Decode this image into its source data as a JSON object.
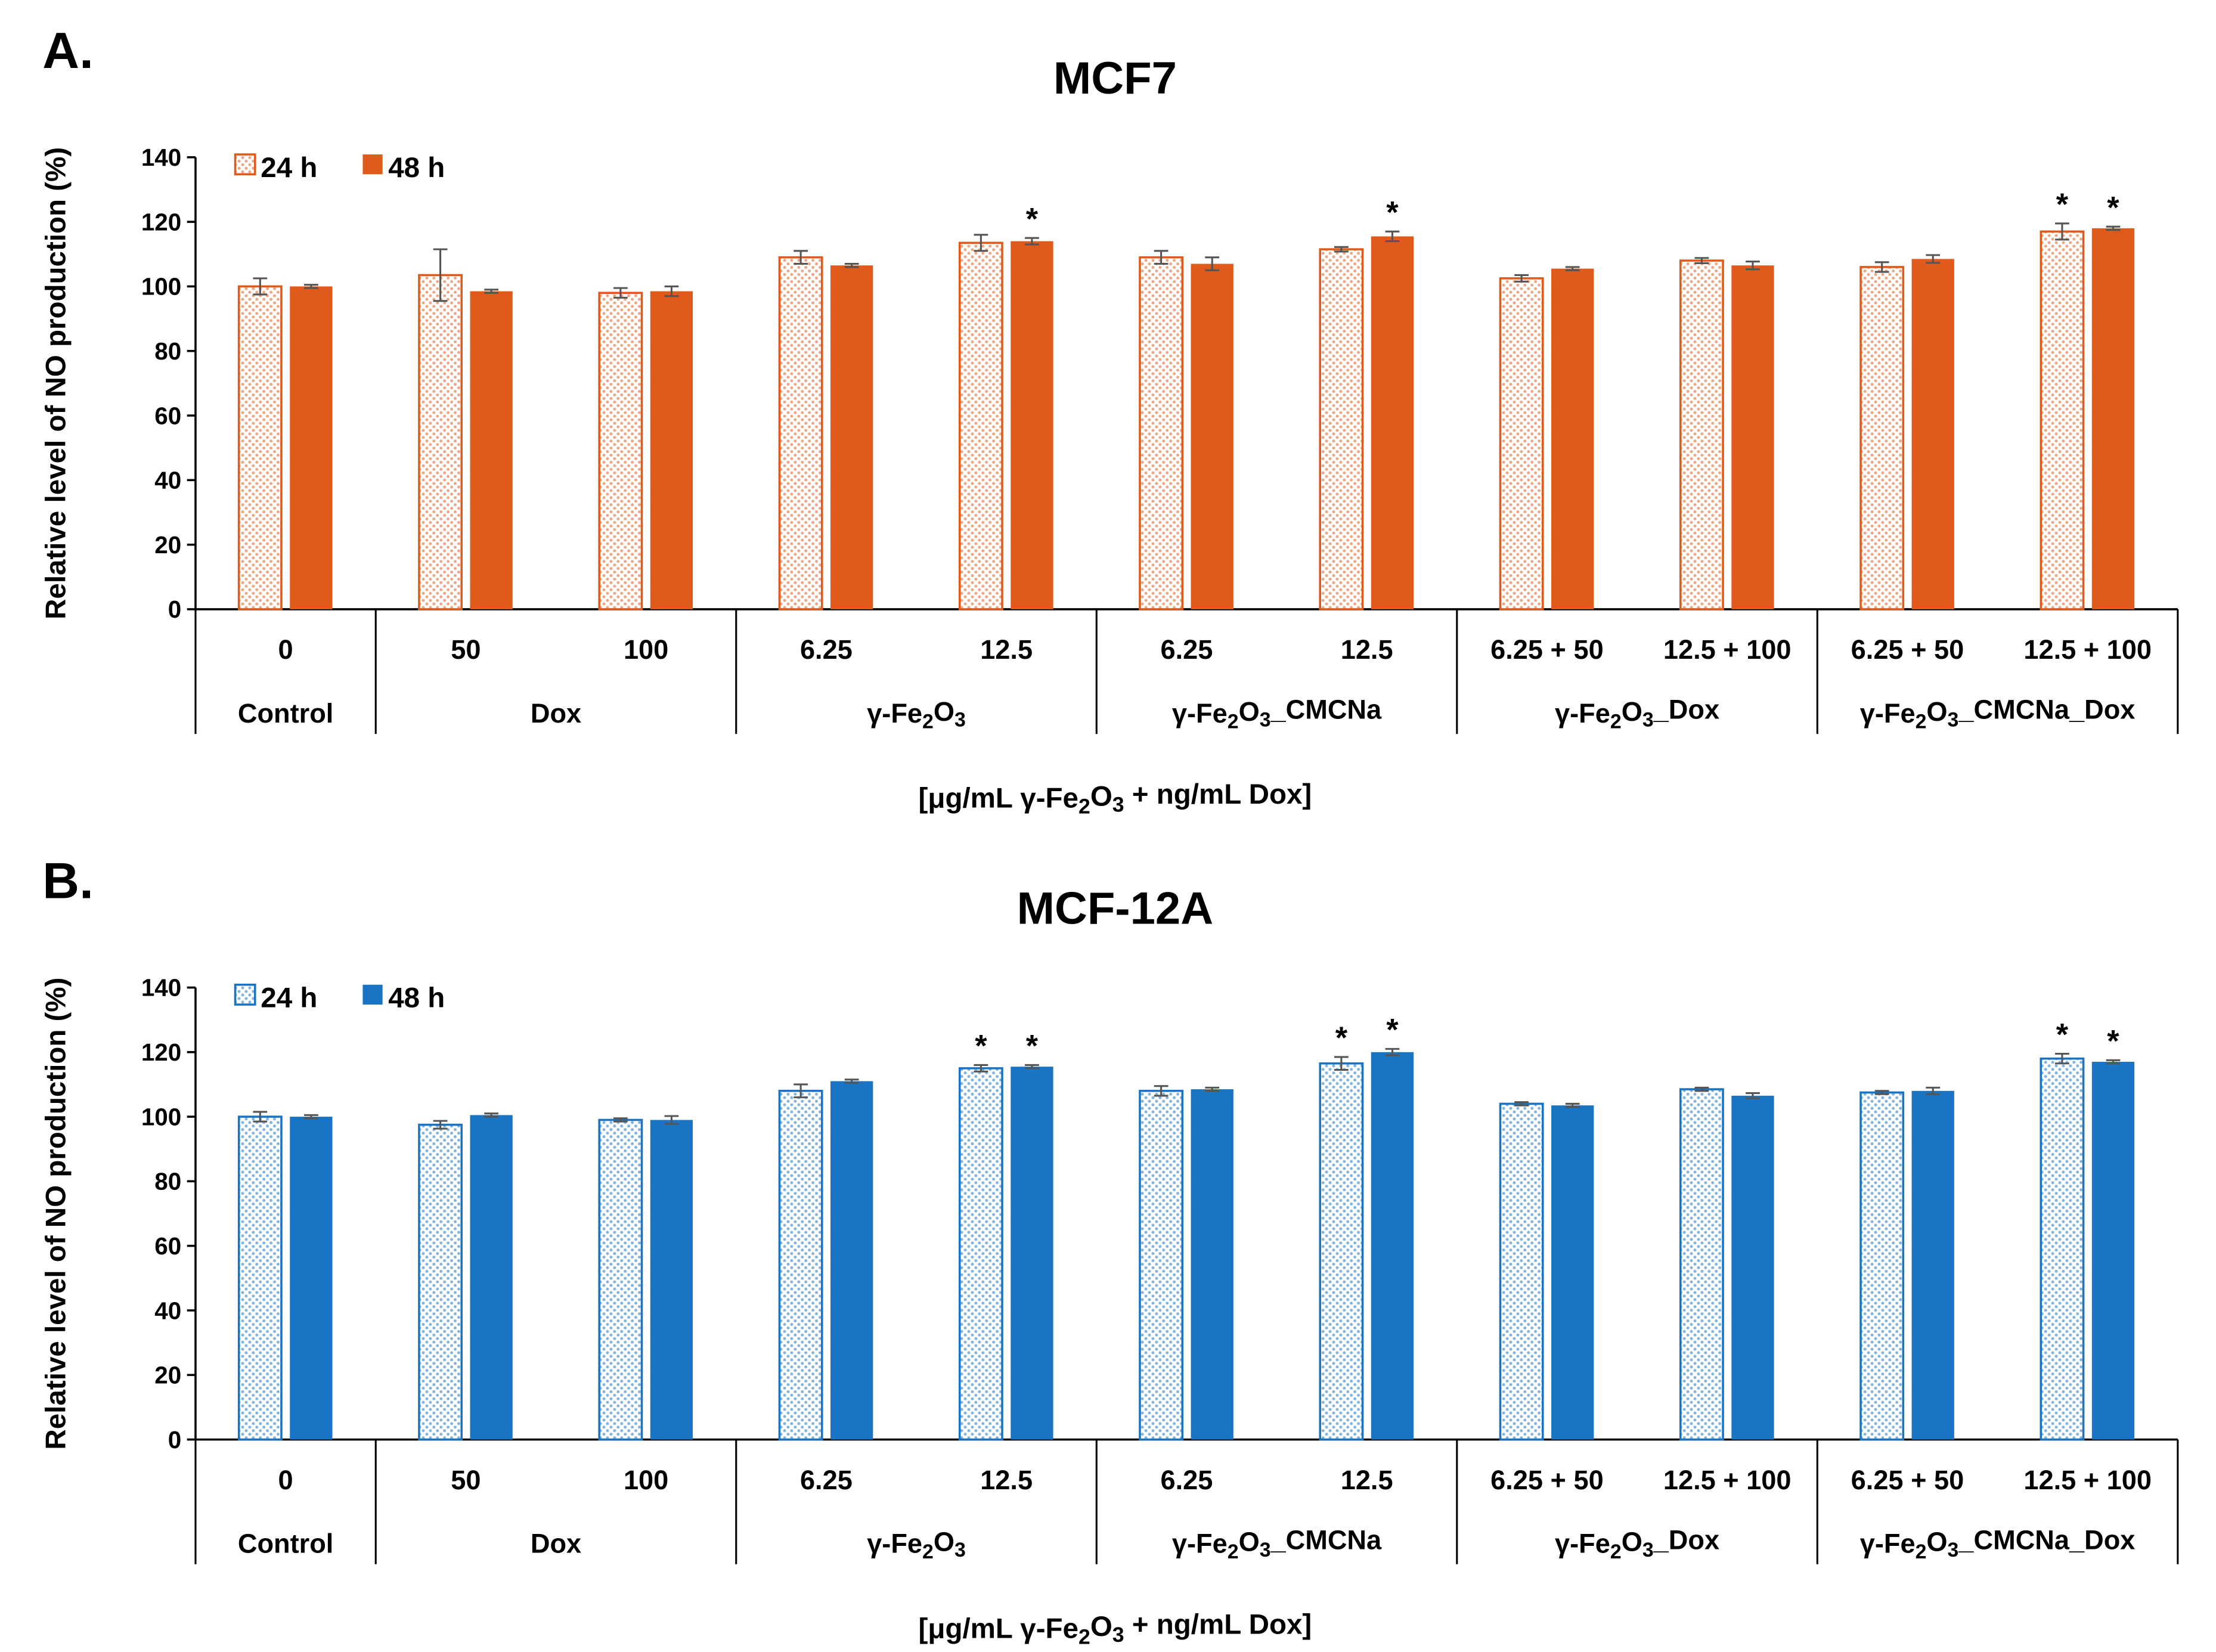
{
  "x_axis_label": "[μg/mL γ-Fe₂O₃ + ng/mL Dox]",
  "chart_data": [
    {
      "panel_label": "A.",
      "title": "MCF7",
      "type": "bar",
      "ylabel": "Relative level of NO production (%)",
      "ylim": [
        0,
        140
      ],
      "yticks": [
        0,
        20,
        40,
        60,
        80,
        100,
        120,
        140
      ],
      "categories": [
        "0",
        "50",
        "100",
        "6.25",
        "12.5",
        "6.25",
        "12.5",
        "6.25 + 50",
        "12.5 + 100",
        "6.25 + 50",
        "12.5 + 100"
      ],
      "groups": [
        {
          "label": "Control",
          "count": 1
        },
        {
          "label": "Dox",
          "count": 2
        },
        {
          "label": "γ-Fe₂O₃",
          "count": 2
        },
        {
          "label": "γ-Fe₂O₃_CMCNa",
          "count": 2
        },
        {
          "label": "γ-Fe₂O₃_Dox",
          "count": 2
        },
        {
          "label": "γ-Fe₂O₃_CMCNa_Dox",
          "count": 2
        }
      ],
      "series": [
        {
          "name": "24 h",
          "style": "dotted",
          "color": "#e05a1b",
          "values": [
            100,
            103.5,
            98,
            109,
            113.5,
            109,
            111.5,
            102.5,
            108,
            106,
            117
          ],
          "errors": [
            2.5,
            8,
            1.5,
            2,
            2.5,
            2,
            0.7,
            1,
            0.8,
            1.5,
            2.5
          ],
          "significant": [
            false,
            false,
            false,
            false,
            false,
            false,
            false,
            false,
            false,
            false,
            true
          ]
        },
        {
          "name": "48 h",
          "style": "solid",
          "color": "#e05a1b",
          "values": [
            100,
            98.5,
            98.5,
            106.5,
            114,
            107,
            115.5,
            105.5,
            106.5,
            108.5,
            118
          ],
          "errors": [
            0.5,
            0.5,
            1.5,
            0.5,
            1,
            2,
            1.5,
            0.5,
            1.2,
            1.2,
            0.5
          ],
          "significant": [
            false,
            false,
            false,
            false,
            true,
            false,
            true,
            false,
            false,
            false,
            true
          ]
        }
      ],
      "legend_position": "top-left",
      "grid": false
    },
    {
      "panel_label": "B.",
      "title": "MCF-12A",
      "type": "bar",
      "ylabel": "Relative level of NO production (%)",
      "ylim": [
        0,
        140
      ],
      "yticks": [
        0,
        20,
        40,
        60,
        80,
        100,
        120,
        140
      ],
      "categories": [
        "0",
        "50",
        "100",
        "6.25",
        "12.5",
        "6.25",
        "12.5",
        "6.25 + 50",
        "12.5 + 100",
        "6.25 + 50",
        "12.5 + 100"
      ],
      "groups": [
        {
          "label": "Control",
          "count": 1
        },
        {
          "label": "Dox",
          "count": 2
        },
        {
          "label": "γ-Fe₂O₃",
          "count": 2
        },
        {
          "label": "γ-Fe₂O₃_CMCNa",
          "count": 2
        },
        {
          "label": "γ-Fe₂O₃_Dox",
          "count": 2
        },
        {
          "label": "γ-Fe₂O₃_CMCNa_Dox",
          "count": 2
        }
      ],
      "series": [
        {
          "name": "24 h",
          "style": "dotted",
          "color": "#1a74c4",
          "values": [
            100,
            97.5,
            99,
            108,
            115,
            108,
            116.5,
            104,
            108.5,
            107.5,
            118
          ],
          "errors": [
            1.5,
            1.2,
            0.5,
            2,
            1,
            1.5,
            2,
            0.5,
            0.5,
            0.5,
            1.5
          ],
          "significant": [
            false,
            false,
            false,
            false,
            true,
            false,
            true,
            false,
            false,
            false,
            true
          ]
        },
        {
          "name": "48 h",
          "style": "solid",
          "color": "#1a74c4",
          "values": [
            100,
            100.5,
            99,
            111,
            115.5,
            108.5,
            120,
            103.5,
            106.5,
            108,
            117
          ],
          "errors": [
            0.5,
            0.5,
            1.2,
            0.5,
            0.5,
            0.5,
            1,
            0.5,
            0.8,
            1,
            0.5
          ],
          "significant": [
            false,
            false,
            false,
            false,
            true,
            false,
            true,
            false,
            false,
            false,
            true
          ]
        }
      ],
      "legend_position": "top-left",
      "grid": false
    }
  ]
}
